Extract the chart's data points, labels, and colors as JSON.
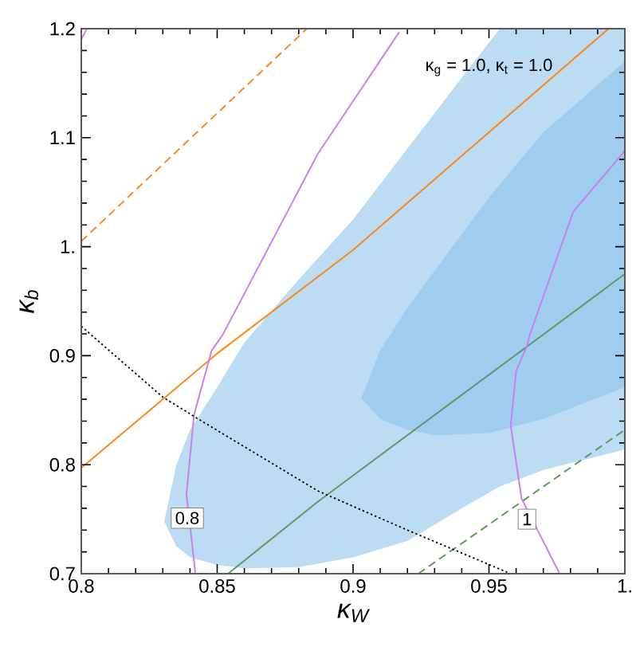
{
  "chart_data": {
    "type": "line",
    "xlabel": "κ$_{W}$",
    "ylabel": "κ$_{b}$",
    "xlim": [
      0.8,
      1.0
    ],
    "ylim": [
      0.7,
      1.2
    ],
    "xticks": [
      0.8,
      0.85,
      0.9,
      0.95,
      {
        "value": 1.0,
        "label": "1."
      }
    ],
    "yticks": [
      0.7,
      0.8,
      0.9,
      {
        "value": 1.0,
        "label": "1."
      },
      1.1,
      1.2
    ],
    "marker": "none",
    "series": [
      {
        "type": "area",
        "color": "#bcdcf4",
        "x": [
          0.8305,
          0.835,
          0.84,
          0.85,
          0.86,
          0.88,
          0.9,
          0.92,
          0.94,
          0.954,
          1.0,
          1.0,
          0.97,
          0.954,
          0.94,
          0.92,
          0.9,
          0.88,
          0.86,
          0.85,
          0.84,
          0.835
        ],
        "values": [
          0.748,
          0.8,
          0.832,
          0.871,
          0.912,
          0.97,
          1.025,
          1.09,
          1.155,
          1.2,
          1.2,
          0.814,
          0.795,
          0.78,
          0.76,
          0.73,
          0.715,
          0.706,
          0.705,
          0.708,
          0.715,
          0.725
        ]
      },
      {
        "type": "area",
        "color": "#9ecdef",
        "x": [
          0.903,
          0.91,
          0.92,
          0.93,
          0.95,
          0.97,
          1.0,
          1.0,
          0.97,
          0.95,
          0.93,
          0.92,
          0.91
        ],
        "values": [
          0.861,
          0.905,
          0.944,
          0.978,
          1.045,
          1.105,
          1.17,
          0.871,
          0.842,
          0.829,
          0.827,
          0.832,
          0.842
        ]
      },
      {
        "color": "#f7891e",
        "line_style": "solid",
        "x": [
          0.8,
          0.85,
          0.9,
          0.994
        ],
        "values": [
          0.797,
          0.902,
          0.997,
          1.2
        ]
      },
      {
        "color": "#f7891e",
        "line_style": "dashed",
        "x": [
          0.8,
          0.883
        ],
        "values": [
          1.005,
          1.2
        ]
      },
      {
        "color": "#5f9a5f",
        "line_style": "solid",
        "x": [
          0.854,
          0.887,
          1.0
        ],
        "values": [
          0.7,
          0.766,
          0.975
        ]
      },
      {
        "color": "#5f9a5f",
        "line_style": "dashed",
        "x": [
          0.924,
          1.0
        ],
        "values": [
          0.7,
          0.832
        ]
      },
      {
        "color": "#c880f0",
        "line_style": "solid",
        "x": [
          0.917,
          0.887,
          0.852,
          0.848,
          0.8415,
          0.8387,
          0.842
        ],
        "values": [
          1.197,
          1.085,
          0.919,
          0.905,
          0.846,
          0.773,
          0.7
        ]
      },
      {
        "color": "#c880f0",
        "line_style": "solid",
        "x": [
          0.8,
          0.802
        ],
        "values": [
          1.19,
          1.2
        ]
      },
      {
        "color": "#c880f0",
        "line_style": "solid",
        "x": [
          0.976,
          0.962,
          0.958,
          0.96,
          0.964,
          0.965,
          0.981,
          1.0
        ],
        "values": [
          0.7,
          0.769,
          0.836,
          0.886,
          0.909,
          0.919,
          1.032,
          1.088
        ]
      },
      {
        "color": "#000000",
        "line_style": "dotted",
        "x": [
          0.8,
          0.83,
          0.843,
          0.887,
          0.92,
          0.958
        ],
        "values": [
          0.927,
          0.862,
          0.842,
          0.776,
          0.74,
          0.7
        ]
      }
    ],
    "annotations": [
      "κ$_{g}$ = 1.0, κ$_{t}$ = 1.0",
      {
        "text": "0.8",
        "x": 0.839,
        "y": 0.751
      },
      {
        "text": "1",
        "x": 0.964,
        "y": 0.75
      }
    ]
  }
}
